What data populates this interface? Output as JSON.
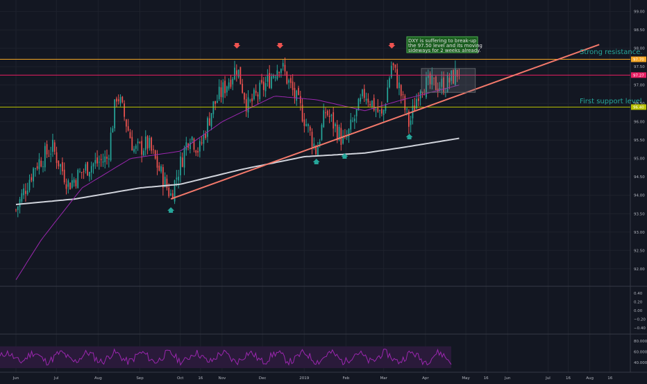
{
  "colors": {
    "background": "#131722",
    "grid": "#1e222d",
    "axis_text": "#b2b5be",
    "candle_up": "#26a69a",
    "candle_down": "#ef5350",
    "ma50": "#9c27b0",
    "ma200": "#d1d4dc",
    "resistance": "#f5a623",
    "pink_line": "#e91e63",
    "support": "#b7c000",
    "trendline": "#f4796b",
    "annotation_text": "#26a69a",
    "callout_bg": "#1b5e20",
    "range_box": "#5d6166",
    "rsi": "#9c27b0",
    "rsi_band": "#2a1a3a"
  },
  "chart_data": {
    "type": "candlestick",
    "title": "",
    "xlabel": "",
    "ylabel": "",
    "x_ticks": [
      "Jun",
      "Jul",
      "Aug",
      "Sep",
      "Oct",
      "16",
      "Nov",
      "Dec",
      "2019",
      "Feb",
      "Mar",
      "Apr",
      "May",
      "16",
      "Jun",
      "Jul",
      "16",
      "Aug",
      "16"
    ],
    "y_ticks": [
      "99.00",
      "98.50",
      "98.00",
      "97.50",
      "97.00",
      "96.50",
      "96.00",
      "95.50",
      "95.00",
      "94.50",
      "94.00",
      "93.50",
      "93.00",
      "92.50",
      "92.00"
    ],
    "ylim": [
      91.6,
      99.2
    ],
    "price_labels": [
      {
        "text": "97.70",
        "value": 97.7,
        "color": "#f5a623"
      },
      {
        "text": "97.27",
        "value": 97.27,
        "color": "#e91e63"
      },
      {
        "text": "96.40",
        "value": 96.4,
        "color": "#b7c000"
      }
    ],
    "horizontal_levels": [
      {
        "name": "Strong resistance.",
        "value": 97.7
      },
      {
        "name": "First support level",
        "value": 96.4
      }
    ],
    "annotations": {
      "resistance_label": "Strong resistance.",
      "support_label": "First support level",
      "callout": [
        "DXY is suffering to break-up",
        "the 97.50 level and its moving",
        "sideways for 2 weeks already."
      ]
    },
    "anchors": [
      {
        "date": "2018-06-01",
        "value": 93.6
      },
      {
        "date": "2018-06-15",
        "value": 94.8
      },
      {
        "date": "2018-06-28",
        "value": 95.3
      },
      {
        "date": "2018-07-10",
        "value": 94.3
      },
      {
        "date": "2018-07-25",
        "value": 94.8
      },
      {
        "date": "2018-08-08",
        "value": 95.0
      },
      {
        "date": "2018-08-15",
        "value": 96.8
      },
      {
        "date": "2018-08-20",
        "value": 96.2
      },
      {
        "date": "2018-08-28",
        "value": 95.2
      },
      {
        "date": "2018-09-07",
        "value": 95.4
      },
      {
        "date": "2018-09-20",
        "value": 94.3
      },
      {
        "date": "2018-09-24",
        "value": 94.0
      },
      {
        "date": "2018-10-08",
        "value": 95.7
      },
      {
        "date": "2018-10-15",
        "value": 95.2
      },
      {
        "date": "2018-10-25",
        "value": 96.4
      },
      {
        "date": "2018-11-12",
        "value": 97.5
      },
      {
        "date": "2018-11-20",
        "value": 96.4
      },
      {
        "date": "2018-12-03",
        "value": 97.0
      },
      {
        "date": "2018-12-14",
        "value": 97.6
      },
      {
        "date": "2018-12-31",
        "value": 96.2
      },
      {
        "date": "2019-01-10",
        "value": 95.2
      },
      {
        "date": "2019-01-17",
        "value": 96.3
      },
      {
        "date": "2019-01-31",
        "value": 95.4
      },
      {
        "date": "2019-02-15",
        "value": 96.8
      },
      {
        "date": "2019-02-28",
        "value": 96.1
      },
      {
        "date": "2019-03-07",
        "value": 97.6
      },
      {
        "date": "2019-03-12",
        "value": 97.0
      },
      {
        "date": "2019-03-20",
        "value": 95.9
      },
      {
        "date": "2019-03-28",
        "value": 97.0
      },
      {
        "date": "2019-04-10",
        "value": 97.0
      },
      {
        "date": "2019-04-16",
        "value": 97.0
      },
      {
        "date": "2019-04-26",
        "value": 97.4
      }
    ],
    "ma200": [
      {
        "date": "2018-06-01",
        "value": 93.75
      },
      {
        "date": "2018-07-15",
        "value": 93.9
      },
      {
        "date": "2018-09-01",
        "value": 94.2
      },
      {
        "date": "2018-10-01",
        "value": 94.3
      },
      {
        "date": "2018-11-15",
        "value": 94.7
      },
      {
        "date": "2019-01-01",
        "value": 95.05
      },
      {
        "date": "2019-02-15",
        "value": 95.15
      },
      {
        "date": "2019-03-15",
        "value": 95.3
      },
      {
        "date": "2019-04-26",
        "value": 95.55
      }
    ],
    "ma50": [
      {
        "date": "2018-06-01",
        "value": 91.7
      },
      {
        "date": "2018-06-20",
        "value": 92.8
      },
      {
        "date": "2018-07-20",
        "value": 94.2
      },
      {
        "date": "2018-08-25",
        "value": 95.0
      },
      {
        "date": "2018-10-01",
        "value": 95.2
      },
      {
        "date": "2018-11-01",
        "value": 96.0
      },
      {
        "date": "2018-12-10",
        "value": 96.7
      },
      {
        "date": "2019-01-10",
        "value": 96.6
      },
      {
        "date": "2019-02-15",
        "value": 96.3
      },
      {
        "date": "2019-03-15",
        "value": 96.6
      },
      {
        "date": "2019-04-26",
        "value": 97.0
      }
    ],
    "trendline": [
      {
        "date": "2018-09-24",
        "value": 93.9
      },
      {
        "date": "2019-08-08",
        "value": 98.1
      }
    ],
    "range_box": {
      "start": "2019-03-29",
      "end": "2019-05-08",
      "high": 97.45,
      "low": 96.8
    },
    "markers_down": [
      "2018-11-12",
      "2018-12-14",
      "2019-03-07"
    ],
    "markers_up": [
      "2018-09-24",
      "2019-01-10",
      "2019-01-31",
      "2019-03-20"
    ],
    "candle_count": 230,
    "middle_panel_ticks": [
      "0.40",
      "0.20",
      "0.00",
      "−0.20",
      "−0.40"
    ],
    "rsi_ticks": [
      "80.0000",
      "60.0000",
      "40.0000"
    ],
    "rsi_band": [
      30,
      70
    ]
  }
}
